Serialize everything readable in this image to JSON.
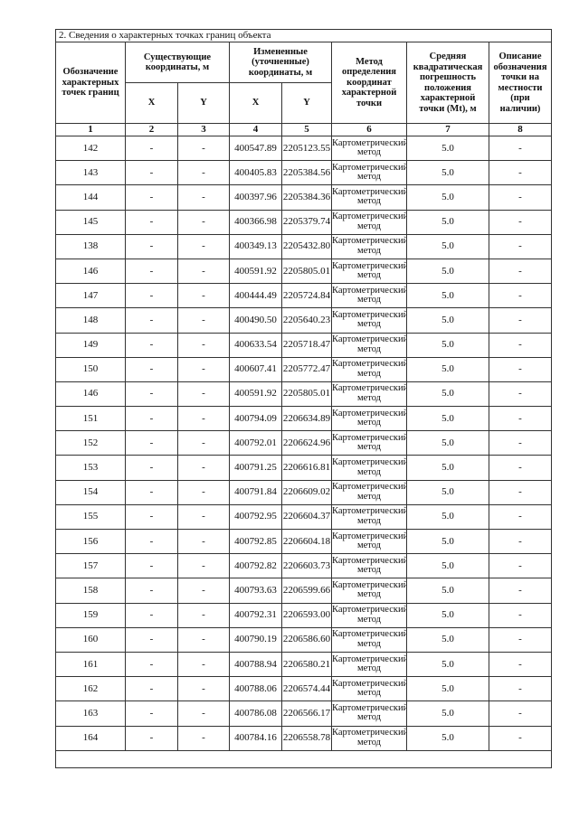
{
  "section_title": "2. Сведения о характерных точках границ объекта",
  "headers": {
    "point": "Обозначение характерных точек границ",
    "existing": "Существующие координаты, м",
    "changed": "Измененные (уточненные) координаты, м",
    "x": "X",
    "y": "Y",
    "method": "Метод определения координат характерной точки",
    "error": "Средняя квадратическая погрешность положения характерной точки (Mt), м",
    "description": "Описание обозначения точки на местности (при наличии)"
  },
  "column_numbers": [
    "1",
    "2",
    "3",
    "4",
    "5",
    "6",
    "7",
    "8"
  ],
  "rows": [
    {
      "point": "142",
      "ex": "-",
      "ey": "-",
      "x": "400547.89",
      "y": "2205123.55",
      "method": "Картометрический метод",
      "mt": "5.0",
      "desc": "-"
    },
    {
      "point": "143",
      "ex": "-",
      "ey": "-",
      "x": "400405.83",
      "y": "2205384.56",
      "method": "Картометрический метод",
      "mt": "5.0",
      "desc": "-"
    },
    {
      "point": "144",
      "ex": "-",
      "ey": "-",
      "x": "400397.96",
      "y": "2205384.36",
      "method": "Картометрический метод",
      "mt": "5.0",
      "desc": "-"
    },
    {
      "point": "145",
      "ex": "-",
      "ey": "-",
      "x": "400366.98",
      "y": "2205379.74",
      "method": "Картометрический метод",
      "mt": "5.0",
      "desc": "-"
    },
    {
      "point": "138",
      "ex": "-",
      "ey": "-",
      "x": "400349.13",
      "y": "2205432.80",
      "method": "Картометрический метод",
      "mt": "5.0",
      "desc": "-"
    },
    {
      "point": "146",
      "ex": "-",
      "ey": "-",
      "x": "400591.92",
      "y": "2205805.01",
      "method": "Картометрический метод",
      "mt": "5.0",
      "desc": "-"
    },
    {
      "point": "147",
      "ex": "-",
      "ey": "-",
      "x": "400444.49",
      "y": "2205724.84",
      "method": "Картометрический метод",
      "mt": "5.0",
      "desc": "-"
    },
    {
      "point": "148",
      "ex": "-",
      "ey": "-",
      "x": "400490.50",
      "y": "2205640.23",
      "method": "Картометрический метод",
      "mt": "5.0",
      "desc": "-"
    },
    {
      "point": "149",
      "ex": "-",
      "ey": "-",
      "x": "400633.54",
      "y": "2205718.47",
      "method": "Картометрический метод",
      "mt": "5.0",
      "desc": "-"
    },
    {
      "point": "150",
      "ex": "-",
      "ey": "-",
      "x": "400607.41",
      "y": "2205772.47",
      "method": "Картометрический метод",
      "mt": "5.0",
      "desc": "-"
    },
    {
      "point": "146",
      "ex": "-",
      "ey": "-",
      "x": "400591.92",
      "y": "2205805.01",
      "method": "Картометрический метод",
      "mt": "5.0",
      "desc": "-"
    },
    {
      "point": "151",
      "ex": "-",
      "ey": "-",
      "x": "400794.09",
      "y": "2206634.89",
      "method": "Картометрический метод",
      "mt": "5.0",
      "desc": "-"
    },
    {
      "point": "152",
      "ex": "-",
      "ey": "-",
      "x": "400792.01",
      "y": "2206624.96",
      "method": "Картометрический метод",
      "mt": "5.0",
      "desc": "-"
    },
    {
      "point": "153",
      "ex": "-",
      "ey": "-",
      "x": "400791.25",
      "y": "2206616.81",
      "method": "Картометрический метод",
      "mt": "5.0",
      "desc": "-"
    },
    {
      "point": "154",
      "ex": "-",
      "ey": "-",
      "x": "400791.84",
      "y": "2206609.02",
      "method": "Картометрический метод",
      "mt": "5.0",
      "desc": "-"
    },
    {
      "point": "155",
      "ex": "-",
      "ey": "-",
      "x": "400792.95",
      "y": "2206604.37",
      "method": "Картометрический метод",
      "mt": "5.0",
      "desc": "-"
    },
    {
      "point": "156",
      "ex": "-",
      "ey": "-",
      "x": "400792.85",
      "y": "2206604.18",
      "method": "Картометрический метод",
      "mt": "5.0",
      "desc": "-"
    },
    {
      "point": "157",
      "ex": "-",
      "ey": "-",
      "x": "400792.82",
      "y": "2206603.73",
      "method": "Картометрический метод",
      "mt": "5.0",
      "desc": "-"
    },
    {
      "point": "158",
      "ex": "-",
      "ey": "-",
      "x": "400793.63",
      "y": "2206599.66",
      "method": "Картометрический метод",
      "mt": "5.0",
      "desc": "-"
    },
    {
      "point": "159",
      "ex": "-",
      "ey": "-",
      "x": "400792.31",
      "y": "2206593.00",
      "method": "Картометрический метод",
      "mt": "5.0",
      "desc": "-"
    },
    {
      "point": "160",
      "ex": "-",
      "ey": "-",
      "x": "400790.19",
      "y": "2206586.60",
      "method": "Картометрический метод",
      "mt": "5.0",
      "desc": "-"
    },
    {
      "point": "161",
      "ex": "-",
      "ey": "-",
      "x": "400788.94",
      "y": "2206580.21",
      "method": "Картометрический метод",
      "mt": "5.0",
      "desc": "-"
    },
    {
      "point": "162",
      "ex": "-",
      "ey": "-",
      "x": "400788.06",
      "y": "2206574.44",
      "method": "Картометрический метод",
      "mt": "5.0",
      "desc": "-"
    },
    {
      "point": "163",
      "ex": "-",
      "ey": "-",
      "x": "400786.08",
      "y": "2206566.17",
      "method": "Картометрический метод",
      "mt": "5.0",
      "desc": "-"
    },
    {
      "point": "164",
      "ex": "-",
      "ey": "-",
      "x": "400784.16",
      "y": "2206558.78",
      "method": "Картометрический метод",
      "mt": "5.0",
      "desc": "-"
    }
  ]
}
